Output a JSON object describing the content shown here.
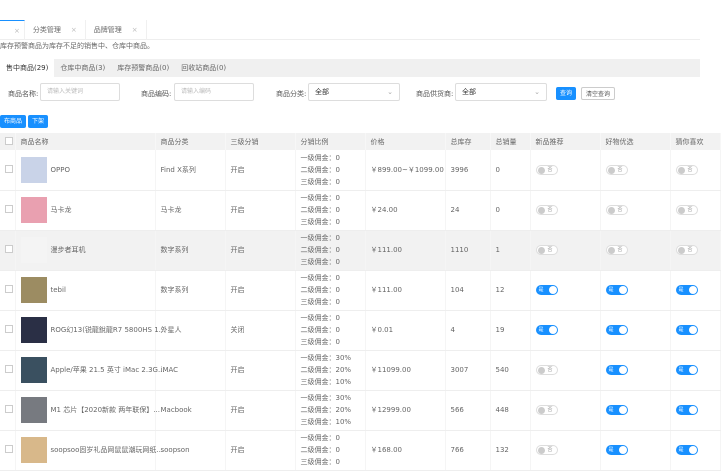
{
  "page_tabs": [
    {
      "label": ""
    },
    {
      "label": "分类管理"
    },
    {
      "label": "品牌管理"
    }
  ],
  "description": "库存预警商品为库存不足的销售中、仓库中商品。",
  "status_tabs": [
    {
      "label": "售中商品(29)"
    },
    {
      "label": "仓库中商品(3)"
    },
    {
      "label": "库存预警商品(0)"
    },
    {
      "label": "回收站商品(0)"
    }
  ],
  "filters": {
    "name_label": "商品名称:",
    "name_placeholder": "请输入关键词",
    "code_label": "商品编码:",
    "code_placeholder": "请输入编码",
    "category_label": "商品分类:",
    "category_value": "全部",
    "supplier_label": "商品供货商:",
    "supplier_value": "全部",
    "search_label": "查询",
    "reset_label": "清空查询"
  },
  "actions": {
    "publish_label": "布商品",
    "offshelf_label": "下架"
  },
  "columns": [
    "商品名称",
    "商品分类",
    "三级分销",
    "分销比例",
    "价格",
    "总库存",
    "总销量",
    "新品推荐",
    "好物优选",
    "猜你喜欢"
  ],
  "switch_labels": {
    "on": "是",
    "off": "否"
  },
  "accent": "#1890ff",
  "rows": [
    {
      "name": "OPPO",
      "category": "Find X系列",
      "dist": "开启",
      "rates": [
        "一级佣金：0",
        "二级佣金：0",
        "三级佣金：0"
      ],
      "price": "￥899.00~￥1099.00",
      "stock": "3996",
      "sales": "0",
      "flags": [
        false,
        false,
        false
      ],
      "img": "#c9d3e8"
    },
    {
      "name": "马卡龙",
      "category": "马卡龙",
      "dist": "开启",
      "rates": [
        "一级佣金：0",
        "二级佣金：0",
        "三级佣金：0"
      ],
      "price": "￥24.00",
      "stock": "24",
      "sales": "0",
      "flags": [
        false,
        false,
        false
      ],
      "img": "#e9a0b0"
    },
    {
      "name": "漫步者耳机",
      "category": "数字系列",
      "dist": "开启",
      "rates": [
        "一级佣金：0",
        "二级佣金：0",
        "三级佣金：0"
      ],
      "price": "￥111.00",
      "stock": "1110",
      "sales": "1",
      "flags": [
        false,
        false,
        false
      ],
      "img": "#f4f4f4"
    },
    {
      "name": "tebil",
      "category": "数字系列",
      "dist": "开启",
      "rates": [
        "一级佣金：0",
        "二级佣金：0",
        "三级佣金：0"
      ],
      "price": "￥111.00",
      "stock": "104",
      "sales": "12",
      "flags": [
        true,
        true,
        true
      ],
      "img": "#9c8c62"
    },
    {
      "name": "ROG幻13(锐龍銳龍R7 5800HS 1...",
      "category": "外星人",
      "dist": "关闭",
      "rates": [
        "一级佣金：0",
        "二级佣金：0",
        "三级佣金：0"
      ],
      "price": "￥0.01",
      "stock": "4",
      "sales": "19",
      "flags": [
        true,
        true,
        true
      ],
      "img": "#2a2f45"
    },
    {
      "name": "Apple/苹果 21.5 英寸 iMac 2.3G...",
      "category": "iMAC",
      "dist": "开启",
      "rates": [
        "一级佣金：30%",
        "二级佣金：20%",
        "三级佣金：10%"
      ],
      "price": "￥11099.00",
      "stock": "3007",
      "sales": "540",
      "flags": [
        false,
        true,
        true
      ],
      "img": "#3a5060"
    },
    {
      "name": "M1 芯片【2020新款 两年联保】...",
      "category": "Macbook",
      "dist": "开启",
      "rates": [
        "一级佣金：30%",
        "二级佣金：20%",
        "三级佣金：10%"
      ],
      "price": "￥12999.00",
      "stock": "566",
      "sales": "448",
      "flags": [
        false,
        true,
        true
      ],
      "img": "#777a80"
    },
    {
      "name": "soopsoo固岁礼品网鼠鼠潮玩网纸...",
      "category": "soopson",
      "dist": "开启",
      "rates": [
        "一级佣金：0",
        "二级佣金：0",
        "三级佣金：0"
      ],
      "price": "￥168.00",
      "stock": "766",
      "sales": "132",
      "flags": [
        false,
        true,
        true
      ],
      "img": "#d8b88a"
    }
  ]
}
